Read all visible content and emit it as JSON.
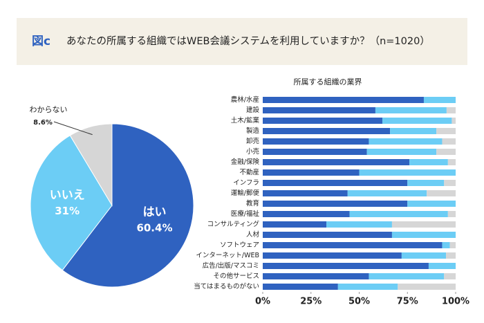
{
  "header": {
    "label": "図c",
    "title": "あなたの所属する組織ではWEB会議システムを利用していますか？（n=1020）"
  },
  "chart_data": [
    {
      "type": "pie",
      "categories": [
        "はい",
        "いいえ",
        "わからない"
      ],
      "values": [
        60.4,
        31,
        8.6
      ],
      "value_labels": [
        "60.4%",
        "31%",
        "8.6%"
      ],
      "colors": [
        "#2f62c0",
        "#6ccdf5",
        "#d6d6d6"
      ]
    },
    {
      "type": "stacked-bar",
      "title": "所属する組織の業界",
      "categories": [
        "農林/水産",
        "建設",
        "土木/鉱業",
        "製造",
        "卸売",
        "小売",
        "金融/保険",
        "不動産",
        "インフラ",
        "運輸/郵便",
        "教育",
        "医療/福祉",
        "コンサルティング",
        "人材",
        "ソフトウェア",
        "インターネット/WEB",
        "広告/出版/マスコミ",
        "その他サービス",
        "当てはまるものがない"
      ],
      "series": [
        {
          "color": "#2f62c0",
          "values": [
            83.5,
            58.4,
            62,
            66,
            55,
            54,
            76,
            50,
            75,
            44,
            75,
            45,
            33,
            67,
            93,
            72,
            86,
            55,
            39
          ]
        },
        {
          "color": "#6ccdf5",
          "values": [
            16.5,
            36.9,
            36,
            24,
            38,
            36,
            20,
            50,
            19,
            41,
            25,
            51,
            34,
            33,
            4,
            23,
            14,
            39,
            31
          ]
        },
        {
          "color": "#d6d6d6",
          "values": [
            0,
            4.7,
            2,
            10,
            7,
            10,
            4,
            0,
            6,
            15,
            0,
            4,
            33,
            0,
            3,
            5,
            0,
            6,
            30
          ]
        }
      ],
      "xlim": [
        0,
        100
      ],
      "xticks": [
        {
          "value": 0,
          "label": "0%"
        },
        {
          "value": 25,
          "label": "25%"
        },
        {
          "value": 50,
          "label": "50%"
        },
        {
          "value": 75,
          "label": "75%"
        },
        {
          "value": 100,
          "label": "100%"
        }
      ]
    }
  ]
}
